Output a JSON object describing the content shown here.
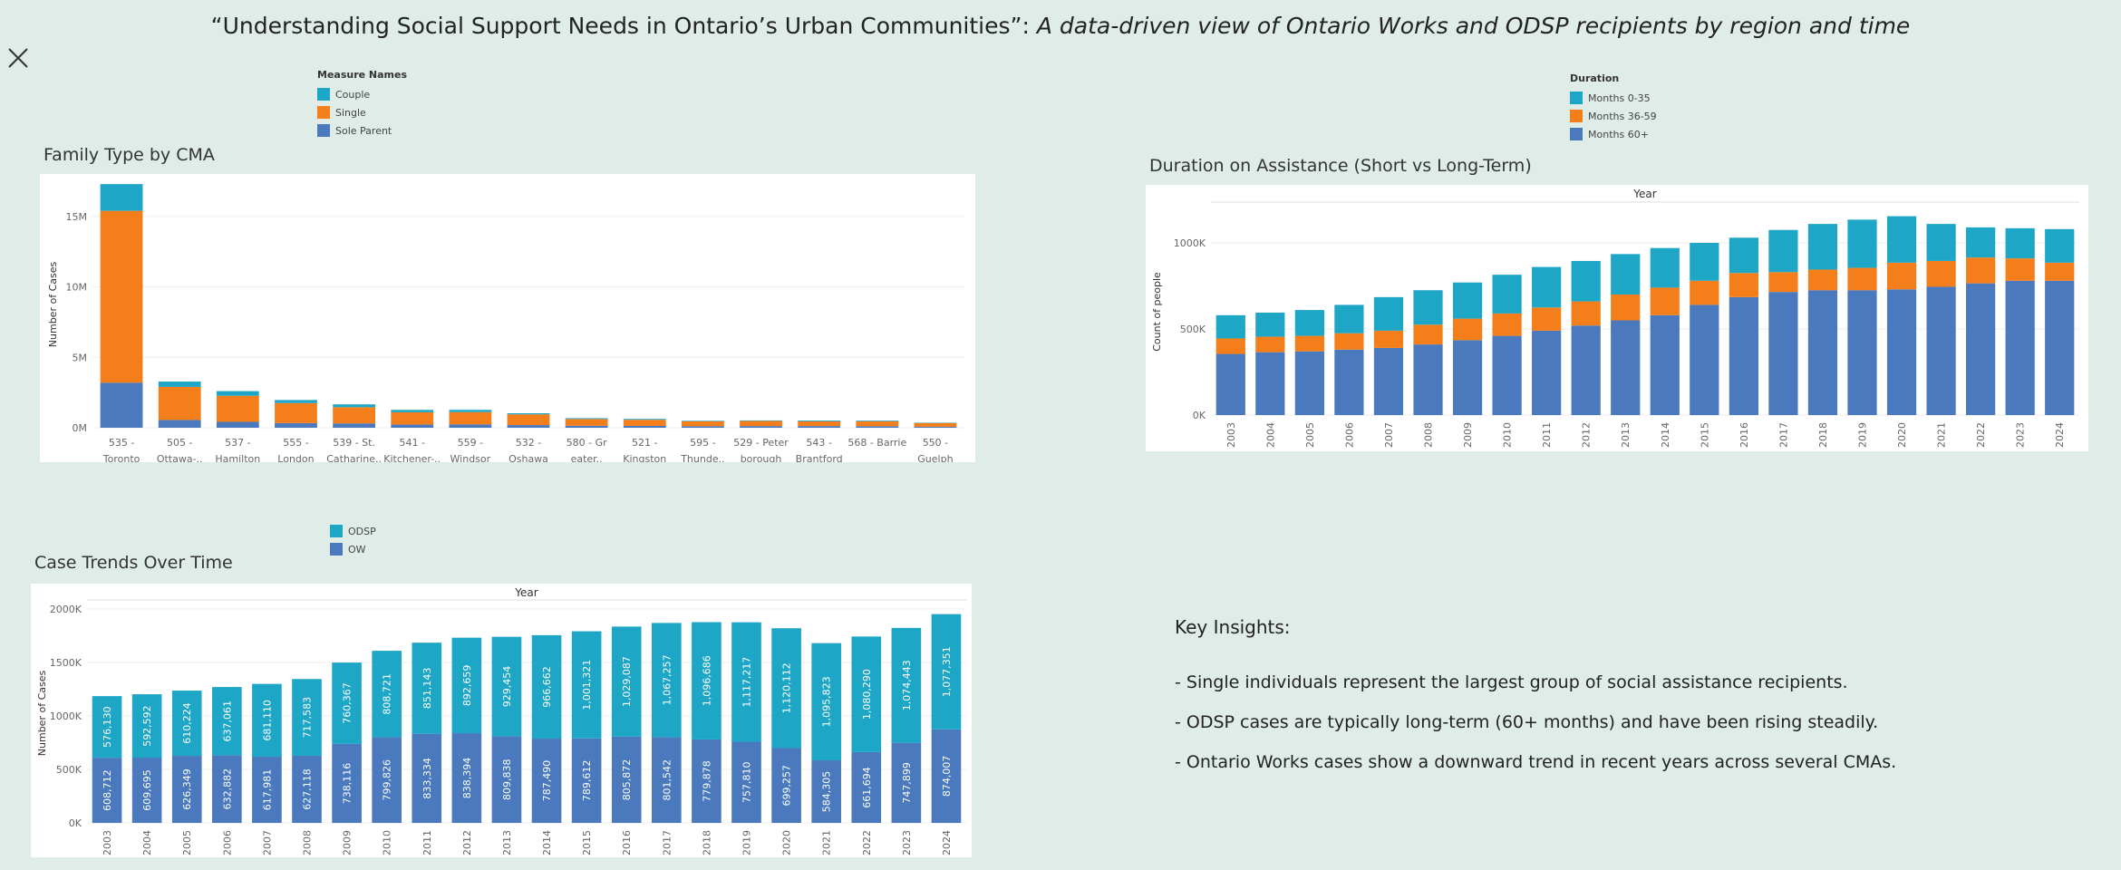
{
  "dashboard": {
    "title_plain": "“Understanding Social Support Needs in Ontario’s Urban Communities”: ",
    "title_italic": "A data-driven view of Ontario Works and ODSP recipients by region and time",
    "close_icon": "close-icon"
  },
  "panels": {
    "family": "Family Type by CMA",
    "duration": "Duration on Assistance (Short vs Long-Term)",
    "trends": "Case Trends Over Time"
  },
  "legends": {
    "family": {
      "title": "Measure Names",
      "items": [
        {
          "label": "Couple",
          "color": "#1ea6c7"
        },
        {
          "label": "Single",
          "color": "#f47f1a"
        },
        {
          "label": "Sole Parent",
          "color": "#4a79be"
        }
      ]
    },
    "duration": {
      "title": "Duration",
      "items": [
        {
          "label": "Months 0-35",
          "color": "#1ea6c7"
        },
        {
          "label": "Months 36-59",
          "color": "#f47f1a"
        },
        {
          "label": "Months 60+",
          "color": "#4a79be"
        }
      ]
    },
    "trends": {
      "title": "",
      "items": [
        {
          "label": "ODSP",
          "color": "#1ea6c7"
        },
        {
          "label": "OW",
          "color": "#4a79be"
        }
      ]
    }
  },
  "insights": {
    "heading": "Key Insights:",
    "lines": [
      "- Single individuals represent the largest group of social assistance recipients.",
      "- ODSP cases are typically long-term (60+ months) and have been rising steadily.",
      "- Ontario Works cases show a downward trend in recent years across several CMAs."
    ]
  },
  "chart_data": [
    {
      "id": "family",
      "type": "bar",
      "stacked": true,
      "ylabel": "Number of Cases",
      "ylim": [
        0,
        17500000
      ],
      "yticks": [
        0,
        5000000,
        10000000,
        15000000
      ],
      "ytick_labels": [
        "0M",
        "5M",
        "10M",
        "15M"
      ],
      "categories": [
        [
          "535 -",
          "Toronto"
        ],
        [
          "505 -",
          "Ottawa-.."
        ],
        [
          "537 -",
          "Hamilton"
        ],
        [
          "555 -",
          "London"
        ],
        [
          "539 - St.",
          "Catharine.."
        ],
        [
          "541 -",
          "Kitchener-.."
        ],
        [
          "559 -",
          "Windsor"
        ],
        [
          "532 -",
          "Oshawa"
        ],
        [
          "580 - Gr",
          "eater.."
        ],
        [
          "521 -",
          "Kingston"
        ],
        [
          "595 -",
          "Thunde.."
        ],
        [
          "529 - Peter",
          "borough"
        ],
        [
          "543 -",
          "Brantford"
        ],
        [
          "568 - Barrie",
          ""
        ],
        [
          "550 -",
          "Guelph"
        ]
      ],
      "series": [
        {
          "name": "Sole Parent",
          "color": "#4a79be",
          "values": [
            3200000,
            550000,
            420000,
            330000,
            310000,
            230000,
            240000,
            190000,
            140000,
            130000,
            110000,
            120000,
            120000,
            110000,
            70000
          ]
        },
        {
          "name": "Single",
          "color": "#f47f1a",
          "values": [
            12200000,
            2350000,
            1850000,
            1420000,
            1150000,
            870000,
            870000,
            760000,
            480000,
            440000,
            350000,
            360000,
            330000,
            350000,
            260000
          ]
        },
        {
          "name": "Couple",
          "color": "#1ea6c7",
          "values": [
            1900000,
            380000,
            330000,
            220000,
            200000,
            170000,
            160000,
            80000,
            60000,
            60000,
            40000,
            40000,
            60000,
            50000,
            30000
          ]
        }
      ]
    },
    {
      "id": "duration",
      "type": "bar",
      "stacked": true,
      "xlabel": "Year",
      "ylabel": "Count of people",
      "ylim": [
        0,
        1200000
      ],
      "yticks": [
        0,
        500000,
        1000000
      ],
      "ytick_labels": [
        "0K",
        "500K",
        "1000K"
      ],
      "categories": [
        "2003",
        "2004",
        "2005",
        "2006",
        "2007",
        "2008",
        "2009",
        "2010",
        "2011",
        "2012",
        "2013",
        "2014",
        "2015",
        "2016",
        "2017",
        "2018",
        "2019",
        "2020",
        "2021",
        "2022",
        "2023",
        "2024"
      ],
      "series": [
        {
          "name": "Months 60+",
          "color": "#4a79be",
          "values": [
            355000,
            365000,
            370000,
            380000,
            390000,
            410000,
            435000,
            460000,
            490000,
            520000,
            550000,
            580000,
            640000,
            685000,
            715000,
            725000,
            725000,
            730000,
            745000,
            765000,
            780000,
            780000
          ]
        },
        {
          "name": "Months 36-59",
          "color": "#f47f1a",
          "values": [
            90000,
            90000,
            90000,
            95000,
            100000,
            115000,
            125000,
            130000,
            135000,
            140000,
            150000,
            160000,
            140000,
            140000,
            115000,
            120000,
            130000,
            155000,
            150000,
            150000,
            130000,
            105000
          ]
        },
        {
          "name": "Months 0-35",
          "color": "#1ea6c7",
          "values": [
            135000,
            140000,
            150000,
            165000,
            195000,
            200000,
            210000,
            225000,
            235000,
            235000,
            235000,
            230000,
            220000,
            205000,
            245000,
            265000,
            280000,
            270000,
            215000,
            175000,
            175000,
            195000
          ]
        }
      ]
    },
    {
      "id": "trends",
      "type": "bar",
      "stacked": true,
      "xlabel": "Year",
      "ylabel": "Number of Cases",
      "ylim": [
        0,
        2050000
      ],
      "yticks": [
        0,
        500000,
        1000000,
        1500000,
        2000000
      ],
      "ytick_labels": [
        "0K",
        "500K",
        "1000K",
        "1500K",
        "2000K"
      ],
      "categories": [
        "2003",
        "2004",
        "2005",
        "2006",
        "2007",
        "2008",
        "2009",
        "2010",
        "2011",
        "2012",
        "2013",
        "2014",
        "2015",
        "2016",
        "2017",
        "2018",
        "2019",
        "2020",
        "2021",
        "2022",
        "2023",
        "2024"
      ],
      "series": [
        {
          "name": "OW",
          "color": "#4a79be",
          "values": [
            608712,
            609695,
            626349,
            632882,
            617981,
            627118,
            738116,
            799826,
            833334,
            838394,
            809838,
            787490,
            789612,
            805872,
            801542,
            779878,
            757810,
            699257,
            584305,
            661694,
            747899,
            874007
          ],
          "labels": [
            "608,712",
            "609,695",
            "626,349",
            "632,882",
            "617,981",
            "627,118",
            "738,116",
            "799,826",
            "833,334",
            "838,394",
            "809,838",
            "787,490",
            "789,612",
            "805,872",
            "801,542",
            "779,878",
            "757,810",
            "699,257",
            "584,305",
            "661,694",
            "747,899",
            "874,007"
          ]
        },
        {
          "name": "ODSP",
          "color": "#1ea6c7",
          "values": [
            576130,
            592592,
            610224,
            637061,
            681110,
            717583,
            760367,
            808721,
            851143,
            892659,
            929454,
            966662,
            1001321,
            1029087,
            1067257,
            1096686,
            1117217,
            1120112,
            1095823,
            1080290,
            1074443,
            1077351
          ],
          "labels": [
            "576,130",
            "592,592",
            "610,224",
            "637,061",
            "681,110",
            "717,583",
            "760,367",
            "808,721",
            "851,143",
            "892,659",
            "929,454",
            "966,662",
            "1,001,321",
            "1,029,087",
            "1,067,257",
            "1,096,686",
            "1,117,217",
            "1,120,112",
            "1,095,823",
            "1,080,290",
            "1,074,443",
            "1,077,351"
          ]
        }
      ]
    }
  ]
}
